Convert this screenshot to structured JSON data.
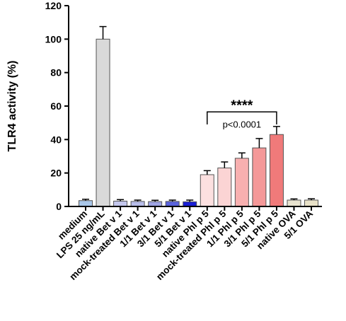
{
  "chart_data": {
    "type": "bar",
    "title": "",
    "xlabel": "",
    "ylabel": "TLR4 activity (%)",
    "ylim": [
      0,
      120
    ],
    "yticks": [
      0,
      20,
      40,
      60,
      80,
      100,
      120
    ],
    "grid": false,
    "categories": [
      "medium",
      "LPS 25 ng/mL",
      "native Bet v 1",
      "mock-treated Bet v 1",
      "1/1 Bet v 1",
      "3/1 Bet v 1",
      "5/1 Bet v 1",
      "native Phl p 5",
      "mock-treated Phl p 5",
      "1/1 Phl p 5",
      "3/1 Phl p 5",
      "5/1 Phl p 5",
      "native OVA",
      "5/1 OVA"
    ],
    "values": [
      3.5,
      100,
      3.2,
      3.0,
      2.9,
      3.0,
      2.8,
      19,
      23,
      28.8,
      35,
      43,
      3.8,
      3.8
    ],
    "errors": [
      0.8,
      7.5,
      0.9,
      0.8,
      0.8,
      0.8,
      1.0,
      2.4,
      3.6,
      3.2,
      5.6,
      4.8,
      0.7,
      0.8
    ],
    "colors": [
      "#a9c6e8",
      "#d9d9d9",
      "#c3c6ec",
      "#b8bde9",
      "#9fa4e3",
      "#5a63dc",
      "#1a1fd6",
      "#fce0e0",
      "#fbd4d4",
      "#f8b0b0",
      "#f49898",
      "#f07a7a",
      "#e8e3cf",
      "#e8e1c8"
    ],
    "annotations": [
      {
        "type": "bracket",
        "from_index": 7,
        "to_index": 11,
        "y": 56.5,
        "stars": "****",
        "text": "p<0.0001"
      }
    ]
  }
}
